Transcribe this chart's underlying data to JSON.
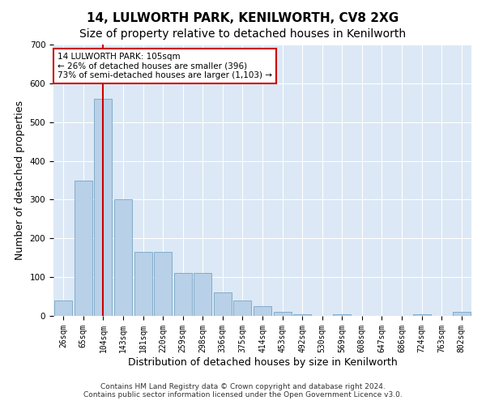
{
  "title": "14, LULWORTH PARK, KENILWORTH, CV8 2XG",
  "subtitle": "Size of property relative to detached houses in Kenilworth",
  "xlabel": "Distribution of detached houses by size in Kenilworth",
  "ylabel": "Number of detached properties",
  "footer_line1": "Contains HM Land Registry data © Crown copyright and database right 2024.",
  "footer_line2": "Contains public sector information licensed under the Open Government Licence v3.0.",
  "bin_labels": [
    "26sqm",
    "65sqm",
    "104sqm",
    "143sqm",
    "181sqm",
    "220sqm",
    "259sqm",
    "298sqm",
    "336sqm",
    "375sqm",
    "414sqm",
    "453sqm",
    "492sqm",
    "530sqm",
    "569sqm",
    "608sqm",
    "647sqm",
    "686sqm",
    "724sqm",
    "763sqm",
    "802sqm"
  ],
  "bar_values": [
    40,
    350,
    560,
    300,
    165,
    165,
    110,
    110,
    60,
    40,
    25,
    10,
    5,
    0,
    5,
    0,
    0,
    0,
    5,
    0,
    10
  ],
  "bar_color": "#b8d0e8",
  "bar_edge_color": "#6699bb",
  "highlight_bin_index": 2,
  "highlight_color": "#cc0000",
  "annotation_line1": "14 LULWORTH PARK: 105sqm",
  "annotation_line2": "← 26% of detached houses are smaller (396)",
  "annotation_line3": "73% of semi-detached houses are larger (1,103) →",
  "annotation_box_color": "#cc0000",
  "ylim": [
    0,
    700
  ],
  "yticks": [
    0,
    100,
    200,
    300,
    400,
    500,
    600,
    700
  ],
  "bg_color": "#dce8f5",
  "grid_color": "#ffffff",
  "fig_bg_color": "#ffffff",
  "title_fontsize": 11,
  "subtitle_fontsize": 10,
  "axis_label_fontsize": 9,
  "tick_fontsize": 7,
  "annotation_fontsize": 7.5,
  "footer_fontsize": 6.5
}
